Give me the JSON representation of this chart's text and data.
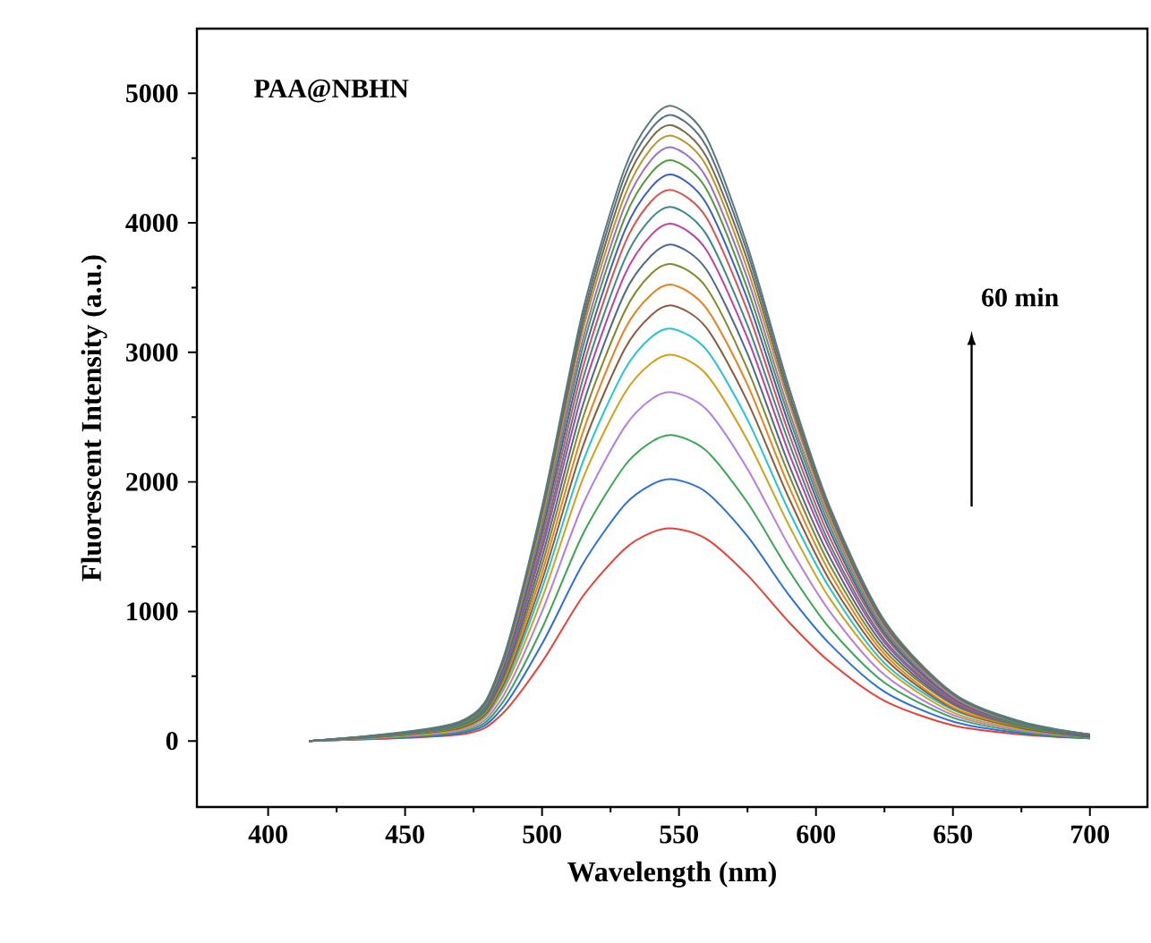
{
  "chart_data": {
    "type": "line",
    "xlabel": "Wavelength (nm)",
    "ylabel": "Fluorescent Intensity (a.u.)",
    "annotations": [
      "PAA@NBHN",
      "60 min"
    ],
    "xlim": [
      374,
      721
    ],
    "xticks": [
      400,
      450,
      500,
      550,
      600,
      650,
      700
    ],
    "ylim": [
      -510,
      5500
    ],
    "yticks": [
      0,
      1000,
      2000,
      3000,
      4000,
      5000
    ],
    "grid": false,
    "marker": "none",
    "line_style": "solid",
    "x": [
      415,
      470,
      485,
      500,
      515,
      530,
      540,
      548,
      560,
      575,
      590,
      605,
      625,
      650,
      675,
      700
    ],
    "series": [
      {
        "color": "#e8413a",
        "values": [
          0,
          50,
          200,
          610,
          1120,
          1480,
          1610,
          1640,
          1560,
          1280,
          920,
          610,
          310,
          120,
          50,
          20
        ]
      },
      {
        "color": "#2a6fdb",
        "values": [
          0,
          60,
          240,
          750,
          1370,
          1820,
          1980,
          2020,
          1920,
          1580,
          1130,
          750,
          380,
          150,
          60,
          20
        ]
      },
      {
        "color": "#3aa655",
        "values": [
          0,
          70,
          280,
          870,
          1600,
          2120,
          2310,
          2360,
          2240,
          1840,
          1320,
          870,
          450,
          180,
          70,
          20
        ]
      },
      {
        "color": "#b47fe0",
        "values": [
          0,
          80,
          320,
          1000,
          1830,
          2420,
          2640,
          2690,
          2560,
          2100,
          1510,
          1000,
          510,
          200,
          80,
          30
        ]
      },
      {
        "color": "#d1a11a",
        "values": [
          0,
          90,
          360,
          1100,
          2030,
          2680,
          2920,
          2980,
          2830,
          2320,
          1670,
          1100,
          570,
          220,
          90,
          30
        ]
      },
      {
        "color": "#20c5d5",
        "values": [
          0,
          100,
          380,
          1180,
          2160,
          2860,
          3120,
          3180,
          3020,
          2480,
          1780,
          1180,
          600,
          240,
          100,
          30
        ]
      },
      {
        "color": "#8c5a3c",
        "values": [
          0,
          100,
          400,
          1240,
          2280,
          3020,
          3290,
          3360,
          3190,
          2620,
          1880,
          1240,
          640,
          250,
          100,
          30
        ]
      },
      {
        "color": "#e8821e",
        "values": [
          0,
          110,
          420,
          1300,
          2390,
          3170,
          3450,
          3520,
          3340,
          2750,
          1970,
          1300,
          670,
          260,
          110,
          40
        ]
      },
      {
        "color": "#808a2a",
        "values": [
          0,
          110,
          440,
          1360,
          2500,
          3310,
          3610,
          3680,
          3500,
          2870,
          2060,
          1360,
          700,
          280,
          110,
          40
        ]
      },
      {
        "color": "#4c6a8a",
        "values": [
          0,
          120,
          460,
          1420,
          2600,
          3450,
          3750,
          3830,
          3640,
          2990,
          2140,
          1420,
          730,
          290,
          120,
          40
        ]
      },
      {
        "color": "#c03fa0",
        "values": [
          0,
          120,
          480,
          1480,
          2710,
          3590,
          3910,
          3990,
          3790,
          3110,
          2230,
          1480,
          760,
          300,
          120,
          40
        ]
      },
      {
        "color": "#3a8a8a",
        "values": [
          0,
          120,
          490,
          1520,
          2800,
          3710,
          4040,
          4120,
          3910,
          3210,
          2310,
          1520,
          780,
          310,
          120,
          40
        ]
      },
      {
        "color": "#d9534f",
        "values": [
          0,
          130,
          510,
          1570,
          2890,
          3830,
          4170,
          4250,
          4040,
          3320,
          2380,
          1570,
          810,
          320,
          130,
          40
        ]
      },
      {
        "color": "#3b5fc0",
        "values": [
          0,
          130,
          520,
          1620,
          2970,
          3930,
          4280,
          4370,
          4150,
          3410,
          2450,
          1620,
          830,
          330,
          130,
          40
        ]
      },
      {
        "color": "#4f9a3a",
        "values": [
          0,
          130,
          540,
          1660,
          3050,
          4030,
          4390,
          4480,
          4260,
          3490,
          2510,
          1660,
          850,
          340,
          130,
          50
        ]
      },
      {
        "color": "#9a6fc8",
        "values": [
          0,
          140,
          550,
          1700,
          3110,
          4120,
          4490,
          4580,
          4350,
          3570,
          2560,
          1700,
          870,
          340,
          140,
          50
        ]
      },
      {
        "color": "#b8962a",
        "values": [
          0,
          140,
          560,
          1730,
          3180,
          4200,
          4580,
          4670,
          4440,
          3640,
          2620,
          1730,
          890,
          350,
          140,
          50
        ]
      },
      {
        "color": "#7a6a4a",
        "values": [
          0,
          140,
          570,
          1760,
          3230,
          4280,
          4660,
          4750,
          4510,
          3710,
          2660,
          1760,
          900,
          360,
          140,
          50
        ]
      },
      {
        "color": "#56708a",
        "values": [
          0,
          140,
          580,
          1790,
          3280,
          4350,
          4730,
          4830,
          4590,
          3770,
          2700,
          1790,
          920,
          360,
          140,
          50
        ]
      },
      {
        "color": "#5b7a78",
        "values": [
          0,
          150,
          590,
          1810,
          3330,
          4410,
          4800,
          4900,
          4660,
          3820,
          2740,
          1810,
          930,
          370,
          150,
          50
        ]
      }
    ]
  }
}
